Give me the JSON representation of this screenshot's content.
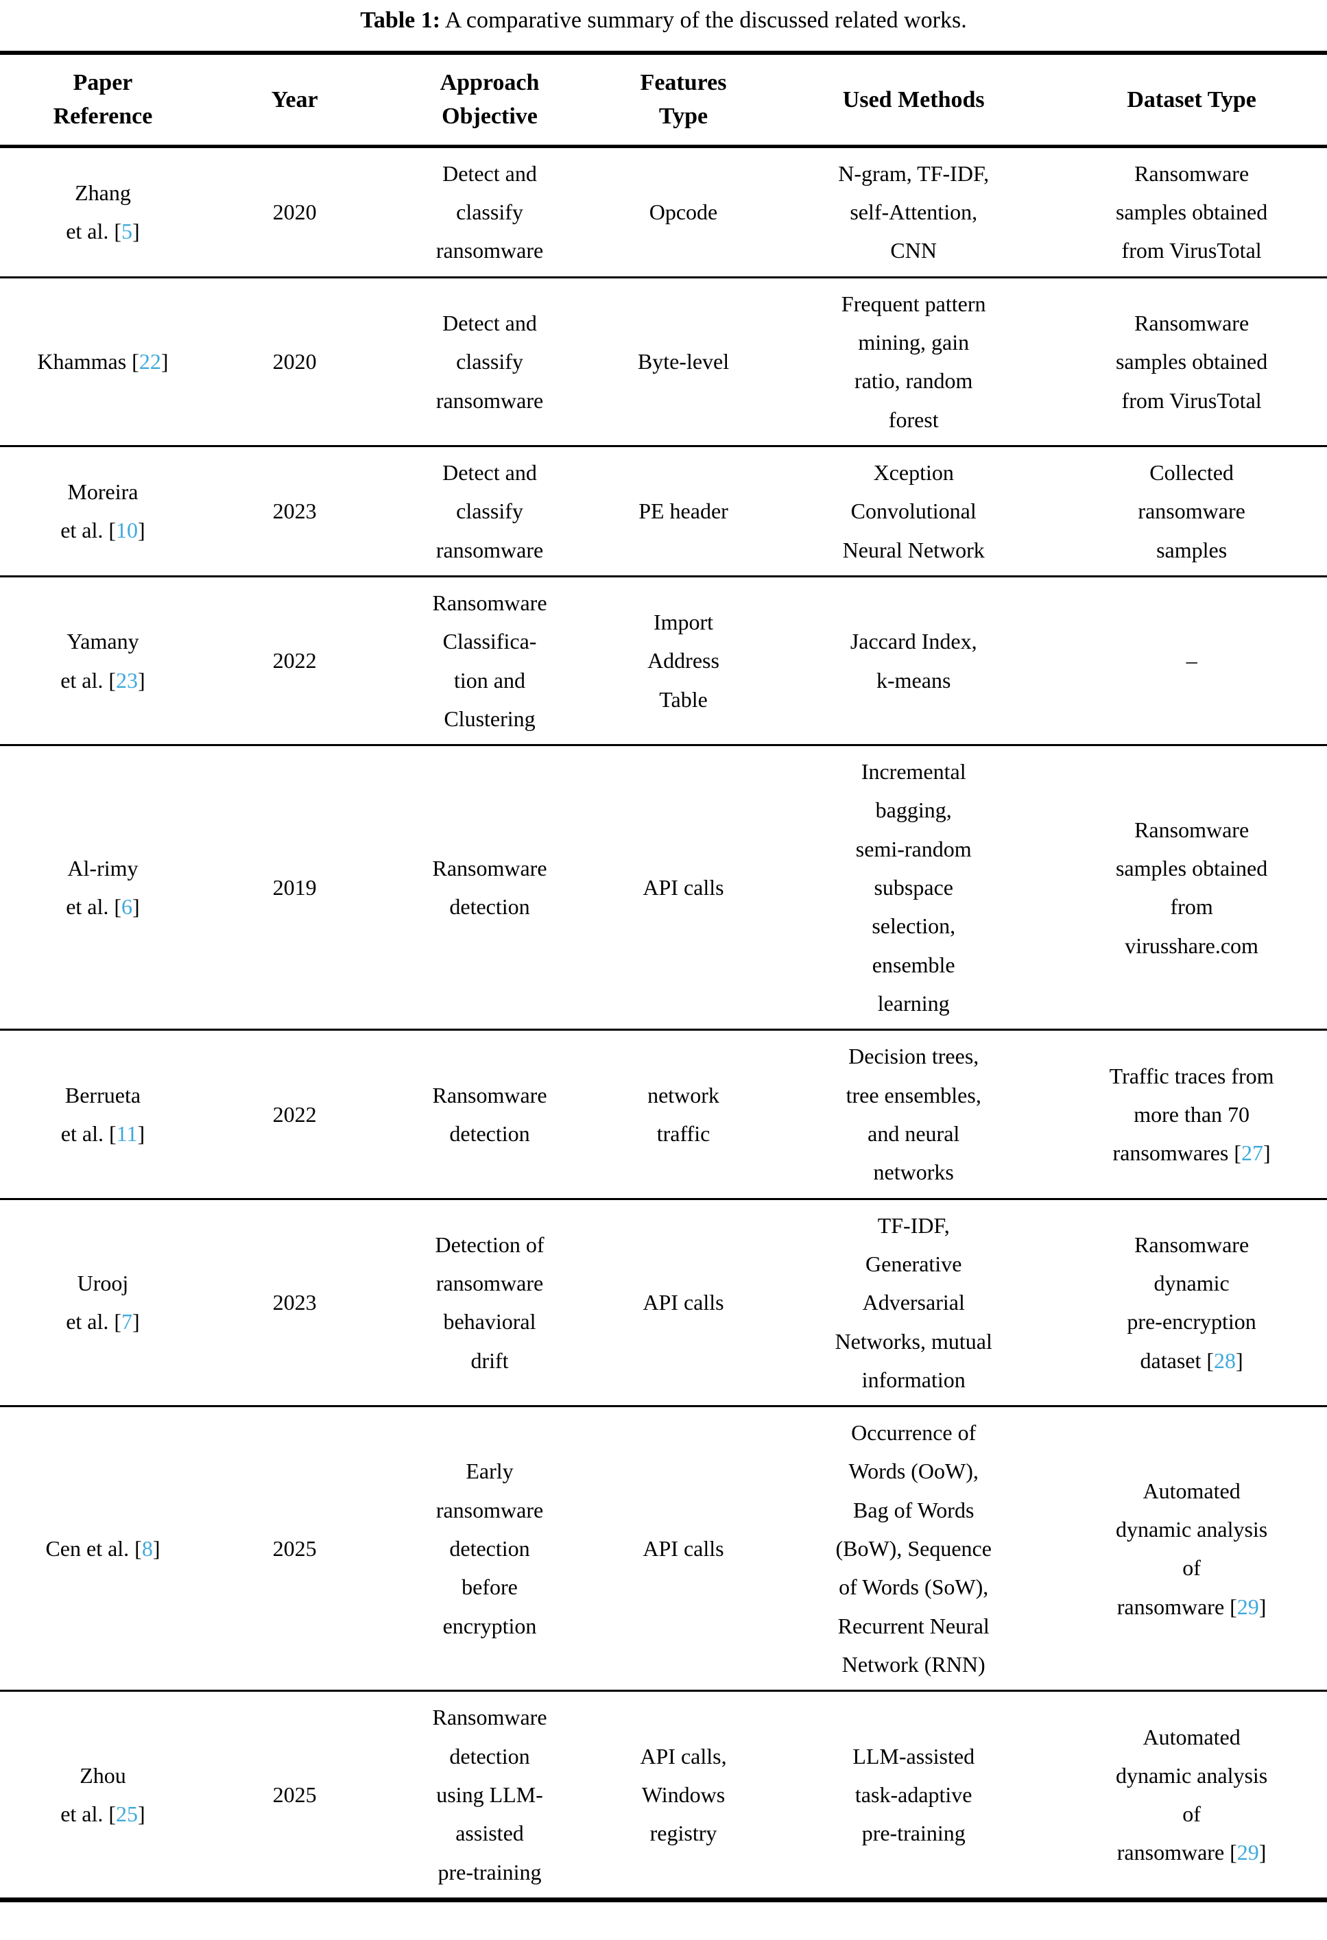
{
  "title": {
    "label": "Table 1:",
    "text": " A comparative summary of the discussed related works."
  },
  "accent_color": "#3fa9dc",
  "format": {
    "cite_open": " [",
    "cite_close": "]"
  },
  "table": {
    "columns": [
      "Paper\nReference",
      "Year",
      "Approach\nObjective",
      "Features\nType",
      "Used Methods",
      "Dataset Type"
    ],
    "rows": [
      {
        "paper": "Zhang\net al.",
        "paper_cite": "5",
        "year": "2020",
        "objective": "Detect and\nclassify\nransomware",
        "features": "Opcode",
        "methods": "N-gram, TF-IDF,\nself-Attention,\nCNN",
        "dataset": "Ransomware\nsamples obtained\nfrom VirusTotal",
        "dataset_cite": null
      },
      {
        "paper": "Khammas",
        "paper_cite": "22",
        "year": "2020",
        "objective": "Detect and\nclassify\nransomware",
        "features": "Byte-level",
        "methods": "Frequent pattern\nmining, gain\nratio, random\nforest",
        "dataset": "Ransomware\nsamples obtained\nfrom VirusTotal",
        "dataset_cite": null
      },
      {
        "paper": "Moreira\net al.",
        "paper_cite": "10",
        "year": "2023",
        "objective": "Detect and\nclassify\nransomware",
        "features": "PE header",
        "methods": "Xception\nConvolutional\nNeural Network",
        "dataset": "Collected\nransomware\nsamples",
        "dataset_cite": null
      },
      {
        "paper": "Yamany\net al.",
        "paper_cite": "23",
        "year": "2022",
        "objective": "Ransomware\nClassifica-\ntion and\nClustering",
        "features": "Import\nAddress\nTable",
        "methods": "Jaccard Index,\nk-means",
        "dataset": "–",
        "dataset_cite": null
      },
      {
        "paper": "Al-rimy\net al.",
        "paper_cite": "6",
        "year": "2019",
        "objective": "Ransomware\ndetection",
        "features": "API calls",
        "methods": "Incremental\nbagging,\nsemi-random\nsubspace\nselection,\nensemble\nlearning",
        "dataset": "Ransomware\nsamples obtained\nfrom\nvirusshare.com",
        "dataset_cite": null
      },
      {
        "paper": "Berrueta\net al.",
        "paper_cite": "11",
        "year": "2022",
        "objective": "Ransomware\ndetection",
        "features": "network\ntraffic",
        "methods": "Decision trees,\ntree ensembles,\nand neural\nnetworks",
        "dataset": "Traffic traces from\nmore than 70\nransomwares",
        "dataset_cite": "27"
      },
      {
        "paper": "Urooj\net al.",
        "paper_cite": "7",
        "year": "2023",
        "objective": "Detection of\nransomware\nbehavioral\ndrift",
        "features": "API calls",
        "methods": "TF-IDF,\nGenerative\nAdversarial\nNetworks, mutual\ninformation",
        "dataset": "Ransomware\ndynamic\npre-encryption\ndataset",
        "dataset_cite": "28"
      },
      {
        "paper": "Cen et al.",
        "paper_cite": "8",
        "year": "2025",
        "objective": "Early\nransomware\ndetection\nbefore\nencryption",
        "features": "API calls",
        "methods": "Occurrence of\nWords (OoW),\nBag of Words\n(BoW), Sequence\nof Words (SoW),\nRecurrent Neural\nNetwork (RNN)",
        "dataset": "Automated\ndynamic analysis\nof\nransomware",
        "dataset_cite": "29"
      },
      {
        "paper": "Zhou\net al.",
        "paper_cite": "25",
        "year": "2025",
        "objective": "Ransomware\ndetection\nusing LLM-\nassisted\npre-training",
        "features": "API calls,\nWindows\nregistry",
        "methods": "LLM-assisted\ntask-adaptive\npre-training",
        "dataset": "Automated\ndynamic analysis\nof\nransomware",
        "dataset_cite": "29"
      }
    ]
  }
}
